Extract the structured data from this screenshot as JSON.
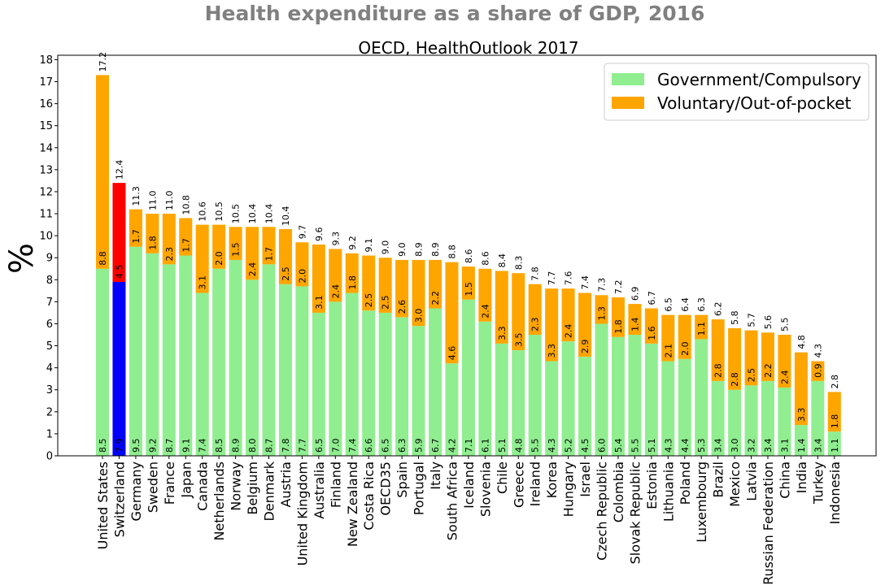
{
  "figure_title": "Health expenditure as a share of GDP, 2016",
  "chart_data": {
    "type": "bar",
    "stacked": true,
    "title": "OECD, HealthOutlook 2017",
    "xlabel": "",
    "ylabel": "%",
    "ylim": [
      0,
      18.2
    ],
    "yticks": [
      0,
      1,
      2,
      3,
      4,
      5,
      6,
      7,
      8,
      9,
      10,
      11,
      12,
      13,
      14,
      15,
      16,
      17,
      18
    ],
    "grid": false,
    "legend_position": "top-right",
    "categories": [
      "United States",
      "Switzerland",
      "Germany",
      "Sweden",
      "France",
      "Japan",
      "Canada",
      "Netherlands",
      "Norway",
      "Belgium",
      "Denmark",
      "Austria",
      "United Kingdom",
      "Australia",
      "Finland",
      "New Zealand",
      "Costa Rica",
      "OECD35",
      "Spain",
      "Portugal",
      "Italy",
      "South Africa",
      "Iceland",
      "Slovenia",
      "Chile",
      "Greece",
      "Ireland",
      "Korea",
      "Hungary",
      "Israel",
      "Czech Republic",
      "Colombia",
      "Slovak Republic",
      "Estonia",
      "Lithuania",
      "Poland",
      "Luxembourg",
      "Brazil",
      "Mexico",
      "Latvia",
      "Russian Federation",
      "China",
      "India",
      "Turkey",
      "Indonesia"
    ],
    "series": [
      {
        "name": "Government/Compulsory",
        "color": "#90ee90",
        "values": [
          8.5,
          7.9,
          9.5,
          9.2,
          8.7,
          9.1,
          7.4,
          8.5,
          8.9,
          8.0,
          8.7,
          7.8,
          7.7,
          6.5,
          7.0,
          7.4,
          6.6,
          6.5,
          6.3,
          5.9,
          6.7,
          4.2,
          7.1,
          6.1,
          5.1,
          4.8,
          5.5,
          4.3,
          5.2,
          4.5,
          6.0,
          5.4,
          5.5,
          5.1,
          4.3,
          4.4,
          5.3,
          3.4,
          3.0,
          3.2,
          3.4,
          3.1,
          1.4,
          3.4,
          1.1
        ]
      },
      {
        "name": "Voluntary/Out-of-pocket",
        "color": "#ffa500",
        "values": [
          8.8,
          4.5,
          1.7,
          1.8,
          2.3,
          1.7,
          3.1,
          2.0,
          1.5,
          2.4,
          1.7,
          2.5,
          2.0,
          3.1,
          2.4,
          1.8,
          2.5,
          2.5,
          2.6,
          3.0,
          2.2,
          4.6,
          1.5,
          2.4,
          3.3,
          3.5,
          2.3,
          3.3,
          2.4,
          2.9,
          1.3,
          1.8,
          1.4,
          1.6,
          2.1,
          2.0,
          1.1,
          2.8,
          2.8,
          2.5,
          2.2,
          2.4,
          3.3,
          0.9,
          1.8
        ]
      }
    ],
    "totals": [
      17.2,
      12.4,
      11.3,
      11.0,
      11.0,
      10.8,
      10.6,
      10.5,
      10.5,
      10.4,
      10.4,
      10.4,
      9.7,
      9.6,
      9.3,
      9.2,
      9.1,
      9.0,
      9.0,
      8.9,
      8.9,
      8.8,
      8.6,
      8.6,
      8.4,
      8.3,
      7.8,
      7.7,
      7.6,
      7.4,
      7.3,
      7.2,
      6.9,
      6.7,
      6.5,
      6.4,
      6.3,
      6.2,
      5.8,
      5.7,
      5.6,
      5.5,
      4.8,
      4.3,
      2.8
    ],
    "highlight": {
      "category": "Switzerland",
      "colors": [
        "#0000ff",
        "#ff0000"
      ]
    }
  }
}
